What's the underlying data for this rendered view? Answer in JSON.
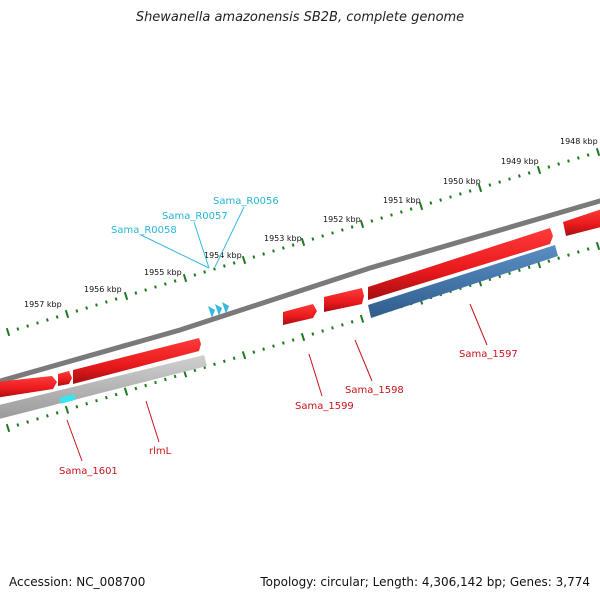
{
  "title": "Shewanella amazonensis SB2B, complete genome",
  "footer": {
    "accession": "Accession: NC_008700",
    "summary": "Topology: circular; Length: 4,306,142 bp; Genes: 3,774"
  },
  "outer_ticks": [
    "1957 kbp",
    "1956 kbp",
    "1955 kbp",
    "1954 kbp",
    "1953 kbp",
    "1952 kbp",
    "1951 kbp",
    "1950 kbp",
    "1949 kbp",
    "1948 kbp"
  ],
  "rna_labels": [
    "Sama_R0056",
    "Sama_R0057",
    "Sama_R0058"
  ],
  "gene_labels": [
    "Sama_1597",
    "Sama_1598",
    "Sama_1599",
    "rlmL",
    "Sama_1601"
  ],
  "colors": {
    "backbone": "#7a7a7a",
    "gene_forward": "#e8191c",
    "gene_reverse_blue": "#3e73a8",
    "gene_reverse_gray": "#b5b5b5",
    "rna": "#35b9df",
    "tick": "#1f7a1f",
    "rna_label": "#25b5d6",
    "gene_label": "#c8141a"
  }
}
